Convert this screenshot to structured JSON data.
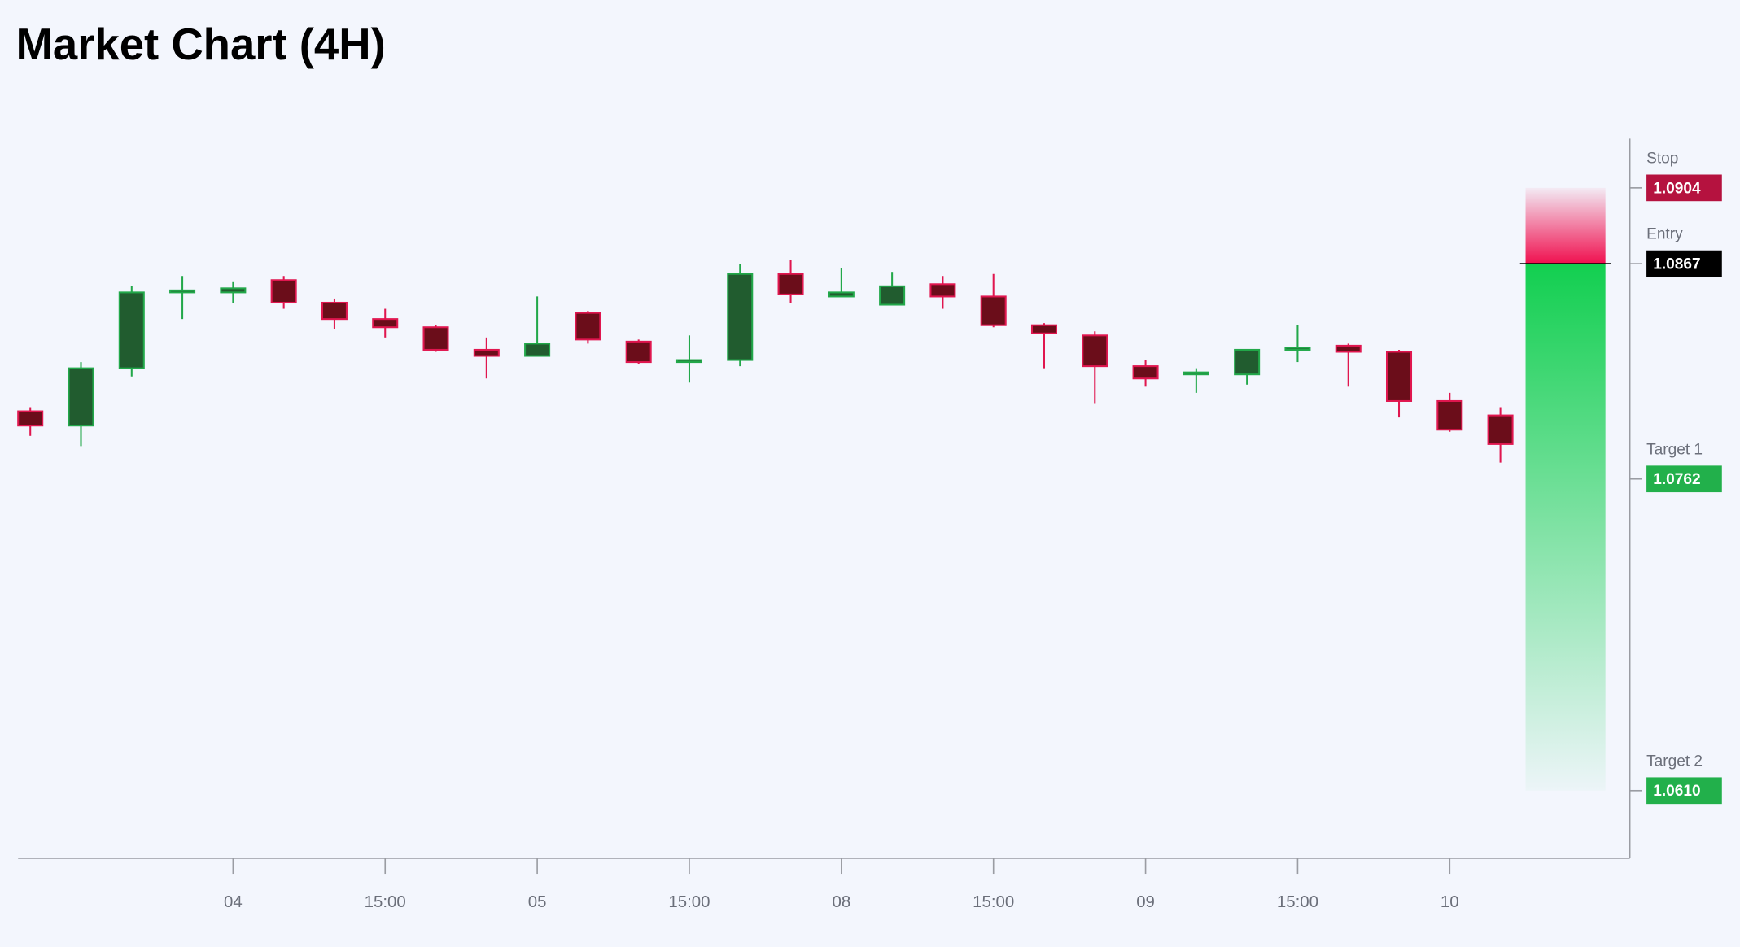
{
  "chart_data": {
    "type": "candlestick",
    "title": "Market Chart (4H)",
    "categories": [
      null,
      null,
      null,
      null,
      "04",
      null,
      null,
      "15:00",
      null,
      null,
      "05",
      null,
      null,
      "15:00",
      null,
      null,
      "08",
      null,
      null,
      "15:00",
      null,
      null,
      "09",
      null,
      null,
      "15:00",
      null,
      null,
      "10",
      null
    ],
    "open": [
      1.0795,
      1.0788,
      1.0816,
      1.0853,
      1.0853,
      1.0859,
      1.0848,
      1.084,
      1.0836,
      1.0825,
      1.0822,
      1.0843,
      1.0829,
      1.0819,
      1.082,
      1.0862,
      1.0851,
      1.0847,
      1.0857,
      1.0851,
      1.0837,
      1.0832,
      1.0817,
      1.0813,
      1.0813,
      1.0825,
      1.0827,
      1.0824,
      1.08,
      1.0793
    ],
    "high": [
      1.0797,
      1.0819,
      1.0856,
      1.0861,
      1.0858,
      1.0861,
      1.085,
      1.0845,
      1.0837,
      1.0831,
      1.0851,
      1.0844,
      1.083,
      1.0832,
      1.0867,
      1.0869,
      1.0865,
      1.0863,
      1.0861,
      1.0862,
      1.0838,
      1.0834,
      1.082,
      1.0816,
      1.0825,
      1.0837,
      1.0828,
      1.0825,
      1.0804,
      1.0797
    ],
    "low": [
      1.0783,
      1.0778,
      1.0812,
      1.084,
      1.0848,
      1.0845,
      1.0835,
      1.0831,
      1.0824,
      1.0811,
      1.0822,
      1.0828,
      1.0818,
      1.0809,
      1.0817,
      1.0848,
      1.0851,
      1.0847,
      1.0845,
      1.0836,
      1.0816,
      1.0799,
      1.0807,
      1.0804,
      1.0808,
      1.0819,
      1.0807,
      1.0792,
      1.0785,
      1.077
    ],
    "close": [
      1.0788,
      1.0816,
      1.0853,
      1.0854,
      1.0855,
      1.0848,
      1.084,
      1.0836,
      1.0825,
      1.0822,
      1.0828,
      1.083,
      1.0819,
      1.082,
      1.0862,
      1.0852,
      1.0853,
      1.0856,
      1.0851,
      1.0837,
      1.0833,
      1.0817,
      1.0811,
      1.0814,
      1.0825,
      1.0826,
      1.0824,
      1.08,
      1.0786,
      1.0779
    ],
    "up_color": "#22a84a",
    "up_fill": "#215c2f",
    "down_color": "#e0164f",
    "down_fill": "#6b0d1a",
    "ylim": [
      1.0577,
      1.0928
    ],
    "levels": [
      {
        "name": "Stop",
        "value": 1.0904,
        "color": "#b5123f"
      },
      {
        "name": "Entry",
        "value": 1.0867,
        "color": "#000000"
      },
      {
        "name": "Target 1",
        "value": 1.0762,
        "color": "#22b04b"
      },
      {
        "name": "Target 2",
        "value": 1.061,
        "label": "1.0610",
        "color": "#22b04b"
      }
    ]
  }
}
